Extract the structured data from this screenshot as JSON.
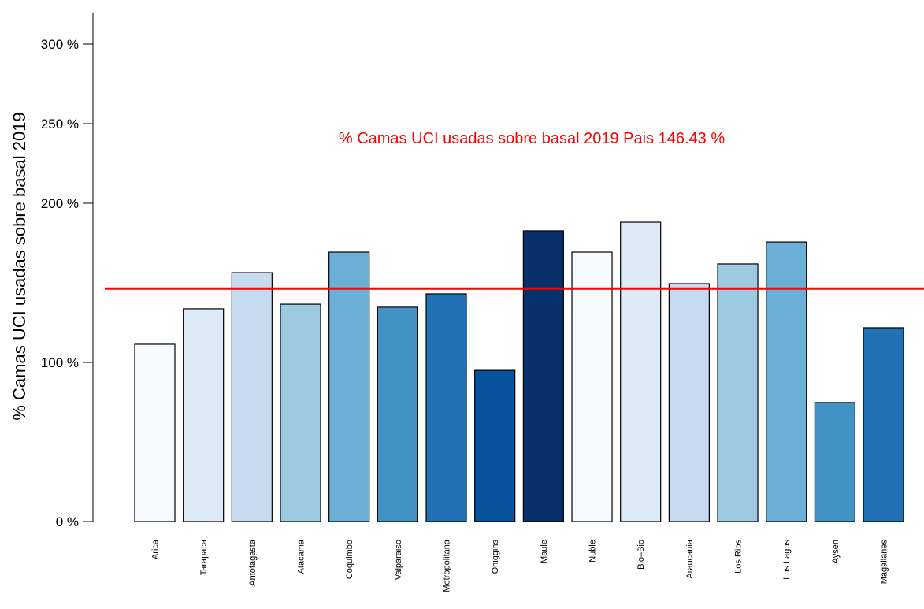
{
  "chart_data": {
    "type": "bar",
    "y_label": "% Camas UCI usadas sobre basal 2019",
    "annotation": "% Camas UCI usadas sobre basal 2019 Pais 146.43 %",
    "reference_line": {
      "value": 146.43,
      "color": "#ff0000"
    },
    "categories": [
      "Arica",
      "Tarapaca",
      "Antofagasta",
      "Atacama",
      "Coquimbo",
      "Valparaiso",
      "Metropolitana",
      "Ohiggins",
      "Maule",
      "Nuble",
      "Bio–Bio",
      "Araucania",
      "Los Rios",
      "Los Lagos",
      "Aysen",
      "Magallanes"
    ],
    "values": [
      111.4,
      133.7,
      156.4,
      136.6,
      169.3,
      134.7,
      143.1,
      95.0,
      182.7,
      169.3,
      188.1,
      149.5,
      161.9,
      175.7,
      74.8,
      121.8
    ],
    "colors": [
      "#f7fbff",
      "#deebf7",
      "#c6dbef",
      "#9ecae1",
      "#6baed6",
      "#4292c6",
      "#2171b5",
      "#08519c",
      "#08306b",
      "#f7fbff",
      "#deebf7",
      "#c6dbef",
      "#9ecae1",
      "#6baed6",
      "#4292c6",
      "#2171b5"
    ],
    "ylim": [
      0,
      320
    ],
    "yticks": [
      {
        "value": 0,
        "label": "0 %"
      },
      {
        "value": 100,
        "label": "100 %"
      },
      {
        "value": 200,
        "label": "200 %"
      },
      {
        "value": 250,
        "label": "250 %"
      },
      {
        "value": 300,
        "label": "300 %"
      }
    ]
  }
}
